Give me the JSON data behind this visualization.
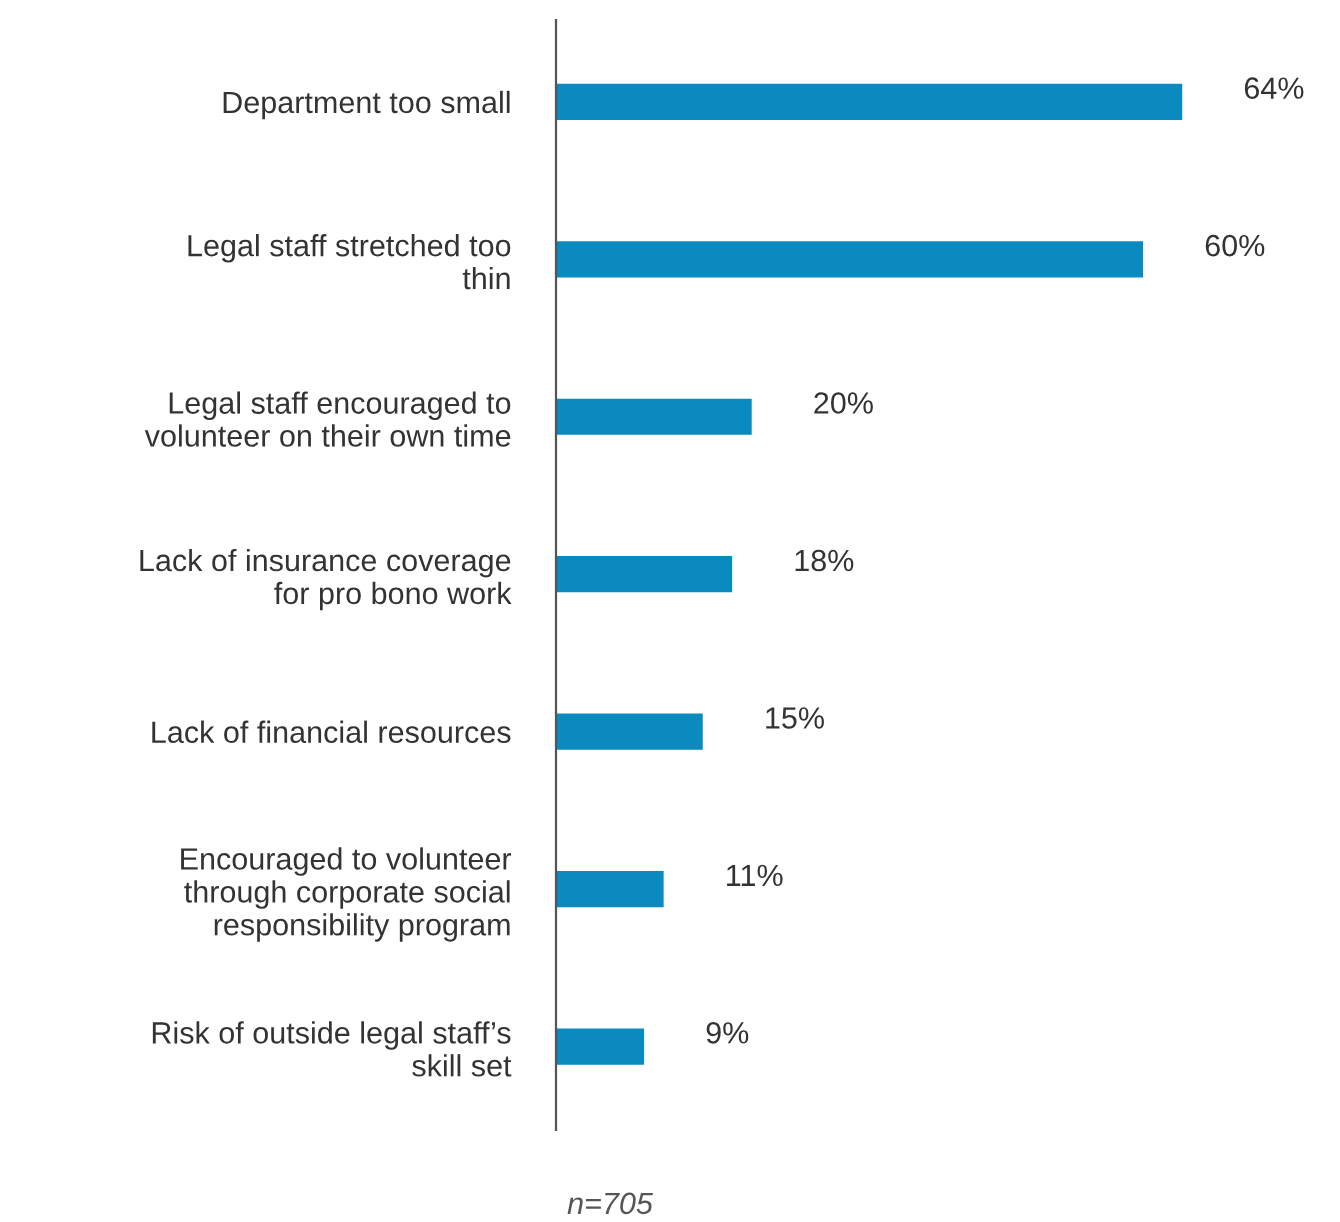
{
  "chart_data": {
    "type": "bar",
    "orientation": "horizontal",
    "categories": [
      "Department too small",
      "Legal staff stretched too\nthin",
      "Legal staff encouraged to\nvolunteer on their own time",
      "Lack of insurance coverage\nfor pro bono work",
      "Lack of financial resources",
      "Encouraged to volunteer\nthrough corporate social\nresponsibility program",
      "Risk of outside legal staff’s\nskill set"
    ],
    "values": [
      64,
      60,
      20,
      18,
      15,
      11,
      9
    ],
    "value_labels": [
      "64%",
      "60%",
      "20%",
      "18%",
      "15%",
      "11%",
      "9%"
    ],
    "color": "#0a8abf",
    "annotations": [
      "n=705"
    ],
    "grid": false,
    "legend": false
  }
}
